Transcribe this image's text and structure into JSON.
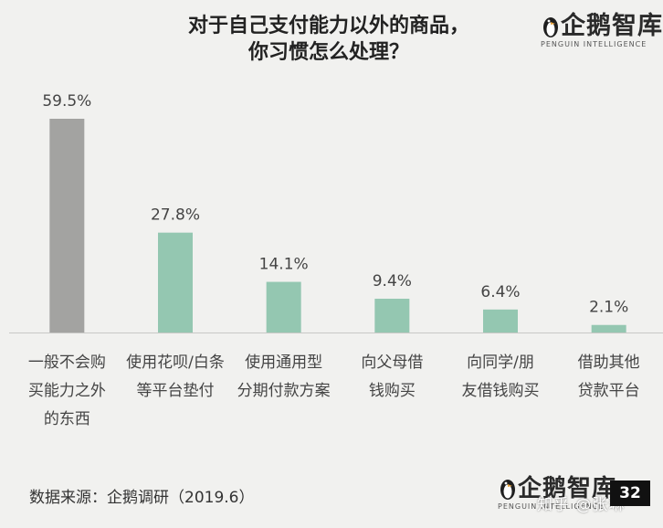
{
  "title_lines": [
    "对于自己支付能力以外的商品，",
    "你习惯怎么处理？"
  ],
  "logo": {
    "brand": "企鹅智库",
    "sub": "PENGUIN INTELLIGENCE"
  },
  "source": "数据来源：企鹅调研（2019.6）",
  "watermark": "知乎 @张琳",
  "page_number": "32",
  "colors": {
    "highlight": "#a3a3a1",
    "bar": "#94c7b1",
    "baseline": "#c8c8c6"
  },
  "chart_data": {
    "type": "bar",
    "title": "对于自己支付能力以外的商品，你习惯怎么处理？",
    "xlabel": "",
    "ylabel": "",
    "ylim": [
      0,
      59.5
    ],
    "grid": false,
    "legend": "none",
    "categories": [
      "一般不会购买能力之外的东西",
      "使用花呗/白条等平台垫付",
      "使用通用型分期付款方案",
      "向父母借钱购买",
      "向同学/朋友借钱购买",
      "借助其他贷款平台"
    ],
    "category_lines": [
      [
        "一般不会购",
        "买能力之外",
        "的东西"
      ],
      [
        "使用花呗/白条",
        "等平台垫付"
      ],
      [
        "使用通用型",
        "分期付款方案"
      ],
      [
        "向父母借",
        "钱购买"
      ],
      [
        "向同学/朋",
        "友借钱购买"
      ],
      [
        "借助其他",
        "贷款平台"
      ]
    ],
    "values": [
      59.5,
      27.8,
      14.1,
      9.4,
      6.4,
      2.1
    ],
    "value_labels": [
      "59.5%",
      "27.8%",
      "14.1%",
      "9.4%",
      "6.4%",
      "2.1%"
    ]
  }
}
